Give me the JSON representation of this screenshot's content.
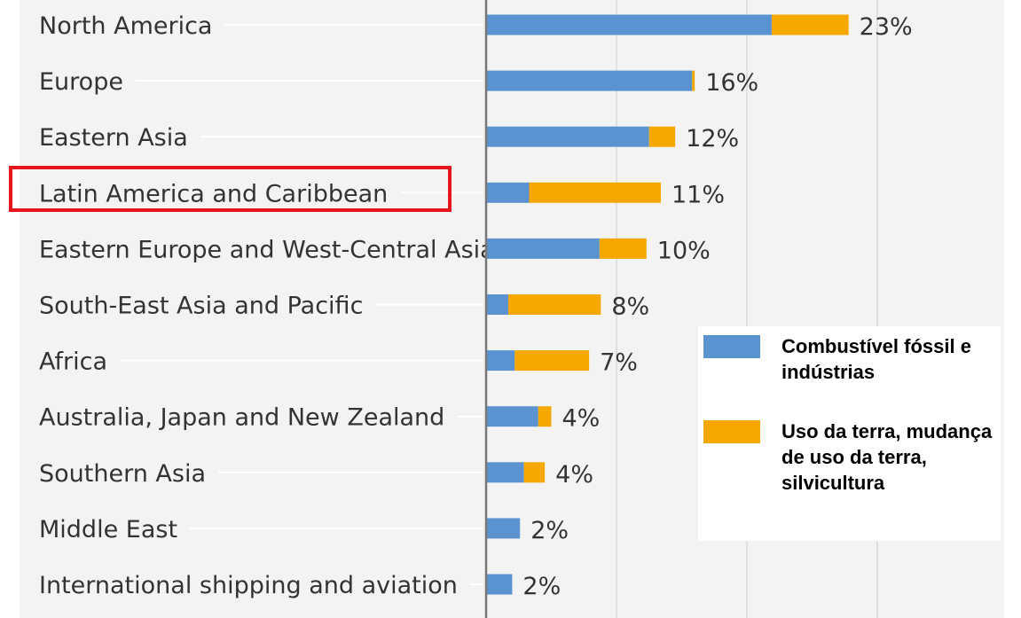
{
  "chart_data": {
    "type": "bar",
    "orientation": "horizontal",
    "stacked": true,
    "categories": [
      "North America",
      "Europe",
      "Eastern Asia",
      "Latin America and Caribbean",
      "Eastern Europe and West-Central Asia",
      "South-East Asia and Pacific",
      "Africa",
      "Australia, Japan and New Zealand",
      "Southern Asia",
      "Middle East",
      "International shipping and aviation"
    ],
    "series": [
      {
        "name": "Combustível fóssil e indústrias",
        "color": "#5b93d0",
        "values": [
          21.9,
          15.8,
          12.5,
          3.3,
          8.7,
          1.7,
          2.2,
          4.0,
          2.9,
          2.6,
          2.0
        ]
      },
      {
        "name": "Uso da terra, mudança de uso da terra, silvicultura",
        "color": "#f7a800",
        "values": [
          5.9,
          0.2,
          2.0,
          10.1,
          3.6,
          7.1,
          5.7,
          1.0,
          1.6,
          0,
          0
        ]
      }
    ],
    "value_labels": [
      "23%",
      "16%",
      "12%",
      "11%",
      "10%",
      "8%",
      "7%",
      "4%",
      "4%",
      "2%",
      "2%"
    ],
    "highlighted_category": "Latin America and Caribbean",
    "grid": true,
    "legend_position": "bottom-right"
  },
  "colors": {
    "background": "#f3f3f3",
    "axis": "#777777",
    "gridline": "#d9d9d9",
    "highlight": "#e8141b"
  }
}
